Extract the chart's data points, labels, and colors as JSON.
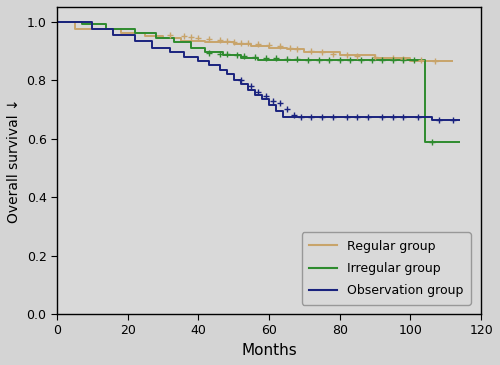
{
  "background_color": "#d4d4d4",
  "plot_bg_color": "#d9d9d9",
  "xlim": [
    0,
    120
  ],
  "ylim": [
    0.0,
    1.05
  ],
  "xlabel": "Months",
  "ylabel": "Overall survival ↓",
  "yticks": [
    0.0,
    0.2,
    0.4,
    0.6,
    0.8,
    1.0
  ],
  "xticks": [
    0,
    20,
    40,
    60,
    80,
    100,
    120
  ],
  "regular_color": "#c8a46a",
  "irregular_color": "#2e8b2e",
  "observation_color": "#1a237e",
  "regular_steps": [
    [
      0,
      1.0
    ],
    [
      5,
      1.0
    ],
    [
      5,
      0.975
    ],
    [
      18,
      0.975
    ],
    [
      18,
      0.96
    ],
    [
      25,
      0.96
    ],
    [
      25,
      0.95
    ],
    [
      30,
      0.95
    ],
    [
      30,
      0.945
    ],
    [
      35,
      0.945
    ],
    [
      35,
      0.935
    ],
    [
      42,
      0.935
    ],
    [
      42,
      0.93
    ],
    [
      50,
      0.93
    ],
    [
      50,
      0.925
    ],
    [
      55,
      0.925
    ],
    [
      55,
      0.915
    ],
    [
      60,
      0.915
    ],
    [
      60,
      0.91
    ],
    [
      65,
      0.91
    ],
    [
      65,
      0.905
    ],
    [
      70,
      0.905
    ],
    [
      70,
      0.895
    ],
    [
      80,
      0.895
    ],
    [
      80,
      0.885
    ],
    [
      90,
      0.885
    ],
    [
      90,
      0.875
    ],
    [
      100,
      0.875
    ],
    [
      100,
      0.865
    ],
    [
      112,
      0.865
    ]
  ],
  "regular_censors": [
    [
      32,
      0.955
    ],
    [
      36,
      0.95
    ],
    [
      38,
      0.948
    ],
    [
      40,
      0.944
    ],
    [
      43,
      0.94
    ],
    [
      46,
      0.937
    ],
    [
      48,
      0.934
    ],
    [
      50,
      0.93
    ],
    [
      52,
      0.928
    ],
    [
      54,
      0.926
    ],
    [
      57,
      0.922
    ],
    [
      60,
      0.92
    ],
    [
      63,
      0.918
    ],
    [
      66,
      0.91
    ],
    [
      68,
      0.905
    ],
    [
      72,
      0.9
    ],
    [
      75,
      0.895
    ],
    [
      78,
      0.89
    ],
    [
      82,
      0.887
    ],
    [
      85,
      0.884
    ],
    [
      90,
      0.88
    ],
    [
      95,
      0.876
    ],
    [
      98,
      0.872
    ],
    [
      103,
      0.868
    ],
    [
      107,
      0.865
    ]
  ],
  "irregular_steps": [
    [
      0,
      1.0
    ],
    [
      7,
      1.0
    ],
    [
      7,
      0.99
    ],
    [
      14,
      0.99
    ],
    [
      14,
      0.975
    ],
    [
      22,
      0.975
    ],
    [
      22,
      0.96
    ],
    [
      28,
      0.96
    ],
    [
      28,
      0.945
    ],
    [
      33,
      0.945
    ],
    [
      33,
      0.93
    ],
    [
      38,
      0.93
    ],
    [
      38,
      0.91
    ],
    [
      42,
      0.91
    ],
    [
      42,
      0.895
    ],
    [
      47,
      0.895
    ],
    [
      47,
      0.885
    ],
    [
      52,
      0.885
    ],
    [
      52,
      0.875
    ],
    [
      57,
      0.875
    ],
    [
      57,
      0.87
    ],
    [
      104,
      0.87
    ],
    [
      104,
      0.59
    ],
    [
      114,
      0.59
    ]
  ],
  "irregular_censors": [
    [
      43,
      0.893
    ],
    [
      46,
      0.89
    ],
    [
      48,
      0.888
    ],
    [
      51,
      0.885
    ],
    [
      53,
      0.883
    ],
    [
      56,
      0.88
    ],
    [
      59,
      0.877
    ],
    [
      62,
      0.875
    ],
    [
      65,
      0.873
    ],
    [
      68,
      0.871
    ],
    [
      71,
      0.87
    ],
    [
      74,
      0.87
    ],
    [
      77,
      0.87
    ],
    [
      80,
      0.87
    ],
    [
      83,
      0.87
    ],
    [
      86,
      0.87
    ],
    [
      89,
      0.87
    ],
    [
      92,
      0.87
    ],
    [
      95,
      0.87
    ],
    [
      98,
      0.87
    ],
    [
      101,
      0.87
    ],
    [
      106,
      0.59
    ]
  ],
  "observation_steps": [
    [
      0,
      1.0
    ],
    [
      10,
      1.0
    ],
    [
      10,
      0.975
    ],
    [
      16,
      0.975
    ],
    [
      16,
      0.955
    ],
    [
      22,
      0.955
    ],
    [
      22,
      0.935
    ],
    [
      27,
      0.935
    ],
    [
      27,
      0.91
    ],
    [
      32,
      0.91
    ],
    [
      32,
      0.895
    ],
    [
      36,
      0.895
    ],
    [
      36,
      0.88
    ],
    [
      40,
      0.88
    ],
    [
      40,
      0.865
    ],
    [
      43,
      0.865
    ],
    [
      43,
      0.85
    ],
    [
      46,
      0.85
    ],
    [
      46,
      0.835
    ],
    [
      48,
      0.835
    ],
    [
      48,
      0.82
    ],
    [
      50,
      0.82
    ],
    [
      50,
      0.8
    ],
    [
      52,
      0.8
    ],
    [
      52,
      0.785
    ],
    [
      54,
      0.785
    ],
    [
      54,
      0.765
    ],
    [
      56,
      0.765
    ],
    [
      56,
      0.75
    ],
    [
      58,
      0.75
    ],
    [
      58,
      0.735
    ],
    [
      60,
      0.735
    ],
    [
      60,
      0.715
    ],
    [
      62,
      0.715
    ],
    [
      62,
      0.695
    ],
    [
      64,
      0.695
    ],
    [
      64,
      0.675
    ],
    [
      106,
      0.675
    ],
    [
      106,
      0.665
    ],
    [
      114,
      0.665
    ]
  ],
  "observation_censors": [
    [
      52,
      0.8
    ],
    [
      55,
      0.78
    ],
    [
      57,
      0.76
    ],
    [
      59,
      0.745
    ],
    [
      61,
      0.73
    ],
    [
      63,
      0.72
    ],
    [
      65,
      0.7
    ],
    [
      67,
      0.68
    ],
    [
      69,
      0.675
    ],
    [
      72,
      0.675
    ],
    [
      75,
      0.675
    ],
    [
      78,
      0.675
    ],
    [
      82,
      0.675
    ],
    [
      85,
      0.675
    ],
    [
      88,
      0.675
    ],
    [
      92,
      0.675
    ],
    [
      95,
      0.675
    ],
    [
      98,
      0.675
    ],
    [
      102,
      0.675
    ],
    [
      108,
      0.665
    ],
    [
      112,
      0.665
    ]
  ],
  "legend_labels": [
    "Regular group",
    "Irregular group",
    "Observation group"
  ],
  "legend_colors": [
    "#c8a46a",
    "#2e8b2e",
    "#1a237e"
  ]
}
